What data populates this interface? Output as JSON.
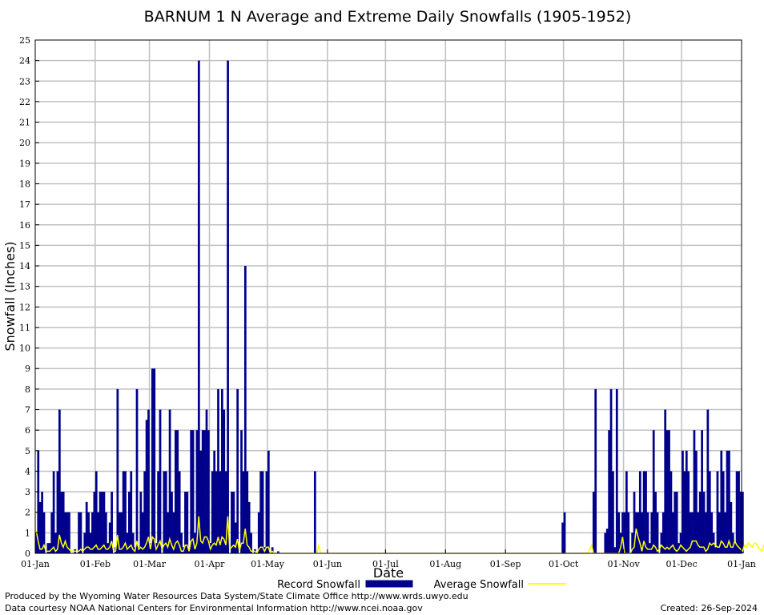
{
  "chart_data": {
    "type": "bar",
    "title": "BARNUM 1 N Average and Extreme Daily Snowfalls (1905-1952)",
    "xlabel": "Date",
    "ylabel": "Snowfall (Inches)",
    "ylim": [
      0,
      25
    ],
    "y_ticks": [
      "0",
      "1",
      "2",
      "3",
      "4",
      "5",
      "6",
      "7",
      "8",
      "9",
      "10",
      "11",
      "12",
      "13",
      "14",
      "15",
      "16",
      "17",
      "18",
      "19",
      "20",
      "21",
      "22",
      "23",
      "24",
      "25"
    ],
    "x_ticks": [
      "01-Jan",
      "01-Feb",
      "01-Mar",
      "01-Apr",
      "01-May",
      "01-Jun",
      "01-Jul",
      "01-Aug",
      "01-Sep",
      "01-Oct",
      "01-Nov",
      "01-Dec",
      "01-Jan"
    ],
    "x_tick_days": [
      0,
      31,
      59,
      90,
      120,
      151,
      181,
      212,
      243,
      273,
      304,
      334,
      365
    ],
    "grid": true,
    "legend": "bottom",
    "colors": {
      "record": "#00008b",
      "average": "#ffff00",
      "grid": "#c0c0c0"
    },
    "series": [
      {
        "name": "Record Snowfall",
        "style": "bars",
        "values": [
          1,
          5,
          2.5,
          3,
          2,
          0,
          0.5,
          0.5,
          2,
          4,
          1,
          4,
          7,
          3,
          3,
          2,
          2,
          2,
          0,
          0,
          0.2,
          0,
          2,
          2,
          0,
          1,
          2.5,
          2,
          1,
          2,
          3,
          4,
          2,
          3,
          3,
          3,
          2,
          0.5,
          1.5,
          3,
          0,
          0.3,
          8,
          2,
          2,
          4,
          4,
          1,
          3,
          4,
          1,
          0.3,
          8,
          0.3,
          3,
          2,
          4,
          6.5,
          7,
          0.5,
          9,
          9,
          0.5,
          4,
          7,
          0,
          4,
          4,
          2,
          7,
          3,
          2,
          6,
          6,
          4,
          1,
          0.3,
          3,
          3,
          0.2,
          6,
          6,
          1,
          6,
          24,
          5,
          6,
          6,
          7,
          6,
          0.5,
          4,
          5,
          4,
          8,
          4,
          8,
          7,
          4,
          24,
          0,
          3,
          3,
          1.5,
          8,
          0,
          6,
          4,
          14,
          4,
          2.5,
          1,
          0,
          0.2,
          0,
          2,
          4,
          4,
          0.3,
          4,
          5,
          0,
          0.3,
          0,
          0,
          0.1,
          0,
          0,
          0,
          0,
          0,
          0,
          0,
          0,
          0,
          0,
          0,
          0,
          0,
          0,
          0,
          0,
          0,
          0,
          4,
          0,
          0,
          0,
          0,
          0,
          0,
          0,
          0,
          0,
          0,
          0,
          0,
          0,
          0,
          0,
          0,
          0,
          0,
          0,
          0,
          0,
          0,
          0,
          0,
          0,
          0,
          0,
          0,
          0,
          0,
          0,
          0,
          0,
          0,
          0,
          0,
          0,
          0,
          0,
          0,
          0,
          0,
          0,
          0,
          0,
          0,
          0,
          0,
          0,
          0,
          0,
          0,
          0,
          0,
          0,
          0,
          0,
          0,
          0,
          0,
          0,
          0,
          0,
          0,
          0,
          0,
          0,
          0,
          0,
          0,
          0,
          0,
          0,
          0,
          0,
          0,
          0,
          0,
          0,
          0,
          0,
          0,
          0,
          0,
          0,
          0,
          0,
          0,
          0,
          0,
          0,
          0,
          0,
          0,
          0,
          0,
          0,
          0,
          0,
          0,
          0,
          0,
          0,
          0,
          0,
          0,
          0,
          0,
          0,
          0,
          0,
          0,
          0,
          0,
          0,
          0,
          0,
          0,
          0,
          0,
          0,
          0,
          0,
          0,
          0,
          0,
          0,
          1.5,
          2,
          0,
          0,
          0,
          0,
          0,
          0,
          0,
          0,
          0,
          0,
          0,
          0,
          0,
          0,
          3,
          8,
          0,
          0,
          0,
          0,
          1,
          1.2,
          6,
          8,
          4,
          0.3,
          8,
          2,
          1,
          2,
          2,
          4,
          2,
          0,
          1,
          3,
          2,
          2,
          4,
          2,
          4,
          4,
          2,
          0.5,
          2,
          6,
          3,
          2,
          0,
          1,
          2,
          7,
          6,
          6,
          4,
          2,
          3,
          3,
          0.5,
          1,
          5,
          4,
          5,
          4,
          2,
          2,
          6,
          5,
          2,
          3,
          6,
          3,
          2,
          7,
          4,
          2,
          1,
          0.3,
          4,
          2,
          5,
          4,
          2,
          5,
          5,
          2.5,
          1,
          0.5,
          4,
          4,
          3,
          3
        ]
      },
      {
        "name": "Average Snowfall",
        "style": "line",
        "values": [
          1.1,
          0.6,
          0.2,
          0.2,
          0.4,
          0.1,
          0.1,
          0.1,
          0.2,
          0.3,
          0.1,
          0.2,
          0.9,
          0.5,
          0.3,
          0.6,
          0.3,
          0.2,
          0.1,
          0.1,
          0.1,
          0.1,
          0.1,
          0.2,
          0.1,
          0.2,
          0.3,
          0.3,
          0.2,
          0.2,
          0.3,
          0.4,
          0.2,
          0.2,
          0.3,
          0.4,
          0.2,
          0.2,
          0.3,
          0.6,
          0.1,
          0.1,
          0.9,
          0.2,
          0.2,
          0.3,
          0.5,
          0.2,
          0.3,
          0.4,
          0.2,
          0.1,
          0.6,
          0.2,
          0.3,
          0.2,
          0.3,
          0.5,
          0.8,
          0.2,
          0.8,
          0.7,
          0.2,
          0.4,
          0.6,
          0.2,
          0.4,
          0.5,
          0.3,
          0.7,
          0.4,
          0.2,
          0.5,
          0.6,
          0.4,
          0.1,
          0.1,
          0.4,
          0.4,
          0.1,
          0.6,
          0.7,
          0.2,
          0.5,
          1.8,
          0.6,
          0.5,
          0.8,
          0.8,
          0.6,
          0.2,
          0.4,
          0.5,
          0.4,
          0.8,
          0.4,
          0.8,
          0.7,
          0.4,
          1.8,
          0.2,
          0.3,
          0.4,
          0.3,
          0.7,
          0.1,
          0.5,
          0.5,
          1.2,
          0.4,
          0.3,
          0.1,
          0.1,
          0.1,
          0,
          0.2,
          0.3,
          0.3,
          0.1,
          0.3,
          0.3,
          0,
          0.1,
          0,
          0,
          0,
          0,
          0,
          0,
          0,
          0,
          0,
          0,
          0,
          0,
          0,
          0,
          0,
          0,
          0,
          0,
          0,
          0,
          0,
          0,
          0,
          0.4,
          0,
          0,
          0,
          0,
          0,
          0,
          0,
          0,
          0,
          0,
          0,
          0,
          0,
          0,
          0,
          0,
          0,
          0,
          0,
          0,
          0,
          0,
          0,
          0,
          0,
          0,
          0,
          0,
          0,
          0,
          0,
          0,
          0,
          0,
          0,
          0,
          0,
          0,
          0,
          0,
          0,
          0,
          0,
          0,
          0,
          0,
          0,
          0,
          0,
          0,
          0,
          0,
          0,
          0,
          0,
          0,
          0,
          0,
          0,
          0,
          0,
          0,
          0,
          0,
          0,
          0,
          0,
          0,
          0,
          0,
          0,
          0,
          0,
          0,
          0,
          0,
          0,
          0,
          0,
          0,
          0,
          0,
          0,
          0,
          0,
          0,
          0,
          0,
          0,
          0,
          0,
          0,
          0,
          0,
          0,
          0,
          0,
          0,
          0,
          0,
          0,
          0,
          0,
          0,
          0,
          0,
          0,
          0,
          0,
          0,
          0,
          0,
          0,
          0,
          0,
          0,
          0,
          0,
          0,
          0,
          0,
          0,
          0,
          0,
          0,
          0,
          0,
          0,
          0,
          0,
          0,
          0,
          0,
          0,
          0,
          0,
          0,
          0,
          0,
          0.2,
          0.4,
          0,
          0,
          0,
          0,
          0,
          0,
          0,
          0,
          0,
          0,
          0,
          0,
          0,
          0,
          0.3,
          0.8,
          0,
          0,
          0,
          0,
          0.2,
          0.3,
          1.2,
          0.8,
          0.5,
          0.1,
          0.6,
          0.3,
          0.2,
          0.2,
          0.2,
          0.4,
          0.3,
          0.1,
          0.2,
          0.4,
          0.3,
          0.2,
          0.3,
          0.2,
          0.3,
          0.4,
          0.2,
          0.1,
          0.2,
          0.4,
          0.3,
          0.2,
          0.1,
          0.2,
          0.3,
          0.6,
          0.6,
          0.6,
          0.4,
          0.3,
          0.3,
          0.3,
          0.1,
          0.2,
          0.5,
          0.4,
          0.5,
          0.4,
          0.3,
          0.3,
          0.6,
          0.5,
          0.3,
          0.3,
          0.6,
          0.3,
          0.3,
          0.6,
          0.4,
          0.3,
          0.2,
          0.1,
          0.4,
          0.3,
          0.5,
          0.4,
          0.3,
          0.5,
          0.5,
          0.3,
          0.2,
          0.1,
          0.4,
          0.4,
          0.8,
          0.3
        ]
      }
    ]
  },
  "footer": {
    "credit_line_1": "Produced by the Wyoming Water Resources Data System/State Climate Office http://www.wrds.uwyo.edu",
    "credit_line_2": "Data courtesy NOAA National Centers for Environmental Information http://www.ncei.noaa.gov",
    "created": "Created:  26-Sep-2024"
  }
}
